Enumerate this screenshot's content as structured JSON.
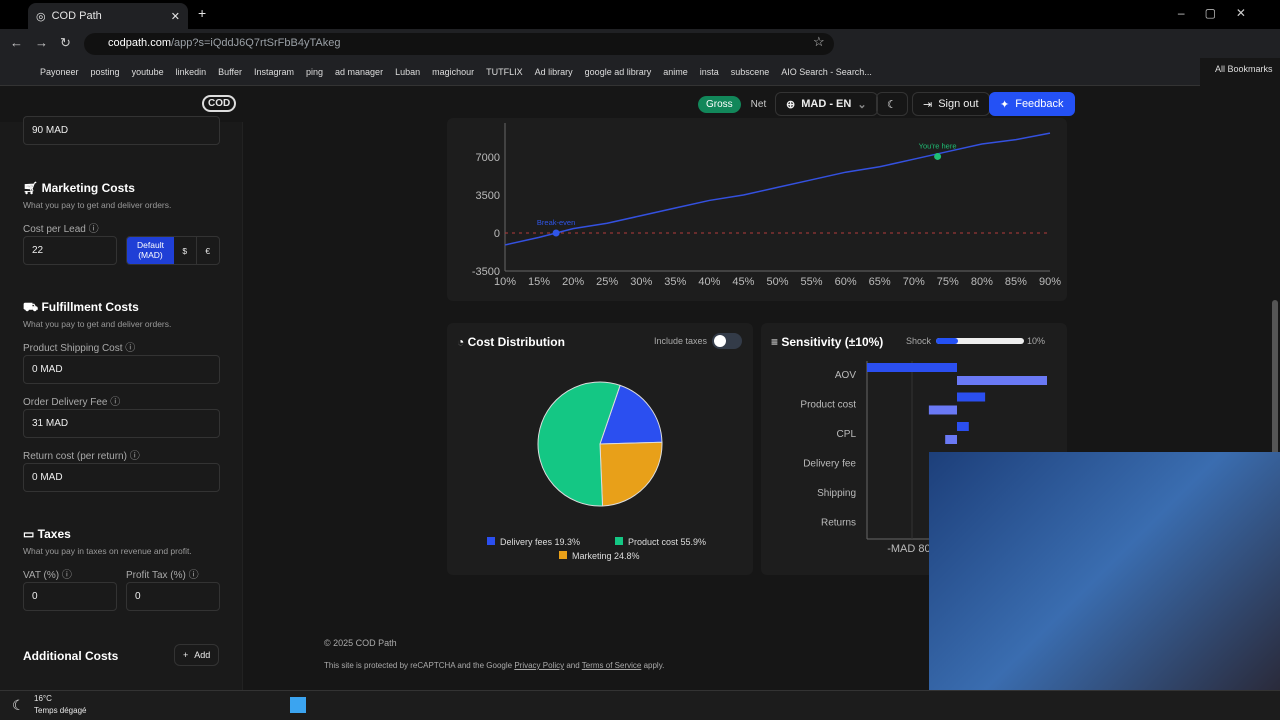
{
  "browser": {
    "tab_title": "COD Path",
    "url_host": "codpath.com",
    "url_path": "/app?s=iQddJ6Q7rtSrFbB4yTAkeg",
    "bookmarks": [
      "Payoneer",
      "posting",
      "youtube",
      "linkedin",
      "Buffer",
      "Instagram",
      "ping",
      "ad manager",
      "Luban",
      "magichour",
      "TUTFLIX",
      "Ad library",
      "google ad library",
      "anime",
      "insta",
      "subscene",
      "AIO Search - Search..."
    ],
    "all_bookmarks": "All Bookmarks"
  },
  "header": {
    "logo": "COD",
    "gross": "Gross",
    "net": "Net",
    "locale": "MAD - EN",
    "sign_out": "Sign out",
    "feedback": "Feedback"
  },
  "sidebar": {
    "top_value": "90 MAD",
    "marketing": {
      "title": "Marketing Costs",
      "desc": "What you pay to get and deliver orders.",
      "cpl_label": "Cost per Lead",
      "cpl_value": "22",
      "currency_default": "Default (MAD)",
      "currency_usd": "$",
      "currency_eur": "€"
    },
    "fulfillment": {
      "title": "Fulfillment Costs",
      "desc": "What you pay to get and deliver orders.",
      "shipping_label": "Product Shipping Cost",
      "shipping_value": "0 MAD",
      "delivery_label": "Order Delivery Fee",
      "delivery_value": "31 MAD",
      "return_label": "Return cost (per return)",
      "return_value": "0 MAD"
    },
    "taxes": {
      "title": "Taxes",
      "desc": "What you pay in taxes on revenue and profit.",
      "vat_label": "VAT (%)",
      "vat_value": "0",
      "profit_label": "Profit Tax (%)",
      "profit_value": "0"
    },
    "additional": {
      "title": "Additional Costs",
      "add": "Add"
    }
  },
  "chart_data": [
    {
      "type": "line",
      "xlabel": "",
      "ylabel": "",
      "x_ticks": [
        "10%",
        "15%",
        "20%",
        "25%",
        "30%",
        "35%",
        "40%",
        "45%",
        "50%",
        "55%",
        "60%",
        "65%",
        "70%",
        "75%",
        "80%",
        "85%",
        "90%"
      ],
      "y_ticks": [
        -3500,
        0,
        3500,
        7000
      ],
      "ylim": [
        -3500,
        9900
      ],
      "xlim": [
        10,
        90
      ],
      "x": [
        10,
        15,
        20,
        25,
        30,
        35,
        40,
        45,
        50,
        55,
        60,
        65,
        70,
        75,
        80,
        85,
        90
      ],
      "values": [
        -1100,
        -400,
        400,
        900,
        1600,
        2300,
        3000,
        3500,
        4200,
        4900,
        5600,
        6100,
        6800,
        7500,
        8200,
        8600,
        9200
      ],
      "annotations": [
        {
          "label": "Break-even",
          "x": 17.5,
          "y": 0,
          "color": "#2f55e8"
        },
        {
          "label": "You're here",
          "x": 73.5,
          "y": 7050,
          "color": "#1fbf75"
        }
      ],
      "reference_line": {
        "y": 0,
        "color": "#b33a3a",
        "style": "dashed"
      },
      "line_color": "#3451e0"
    },
    {
      "type": "pie",
      "title": "Cost Distribution",
      "toggle_label": "Include taxes",
      "toggle_on": false,
      "slices": [
        {
          "label": "Delivery fees",
          "value": 19.3,
          "display": "19.3%",
          "color": "#2b4ff0"
        },
        {
          "label": "Marketing",
          "value": 24.8,
          "display": "24.8%",
          "color": "#e8a019"
        },
        {
          "label": "Product cost",
          "value": 55.9,
          "display": "55.9%",
          "color": "#14c784"
        }
      ]
    },
    {
      "type": "bar",
      "title": "Sensitivity (±10%)",
      "shock_label": "Shock",
      "shock_value": "10%",
      "shock_level": 0.1,
      "categories": [
        "AOV",
        "Product cost",
        "CPL",
        "Delivery fee",
        "Shipping",
        "Returns"
      ],
      "up": [
        -1600,
        500,
        210,
        0,
        0,
        0
      ],
      "down": [
        1600,
        -500,
        -210,
        0,
        0,
        0
      ],
      "xlim": [
        -1600,
        1600
      ],
      "tick_label": "-MAD 800",
      "colors": [
        "#2b4ff0",
        "#6a79f5"
      ]
    }
  ],
  "footer": {
    "copyright": "© 2025 COD Path",
    "recaptcha_pre": "This site is protected by reCAPTCHA and the Google ",
    "privacy": "Privacy Policy",
    "and": " and ",
    "terms": "Terms of Service",
    "apply": " apply."
  },
  "taskbar": {
    "temp": "16°C",
    "weather": "Temps dégagé"
  }
}
